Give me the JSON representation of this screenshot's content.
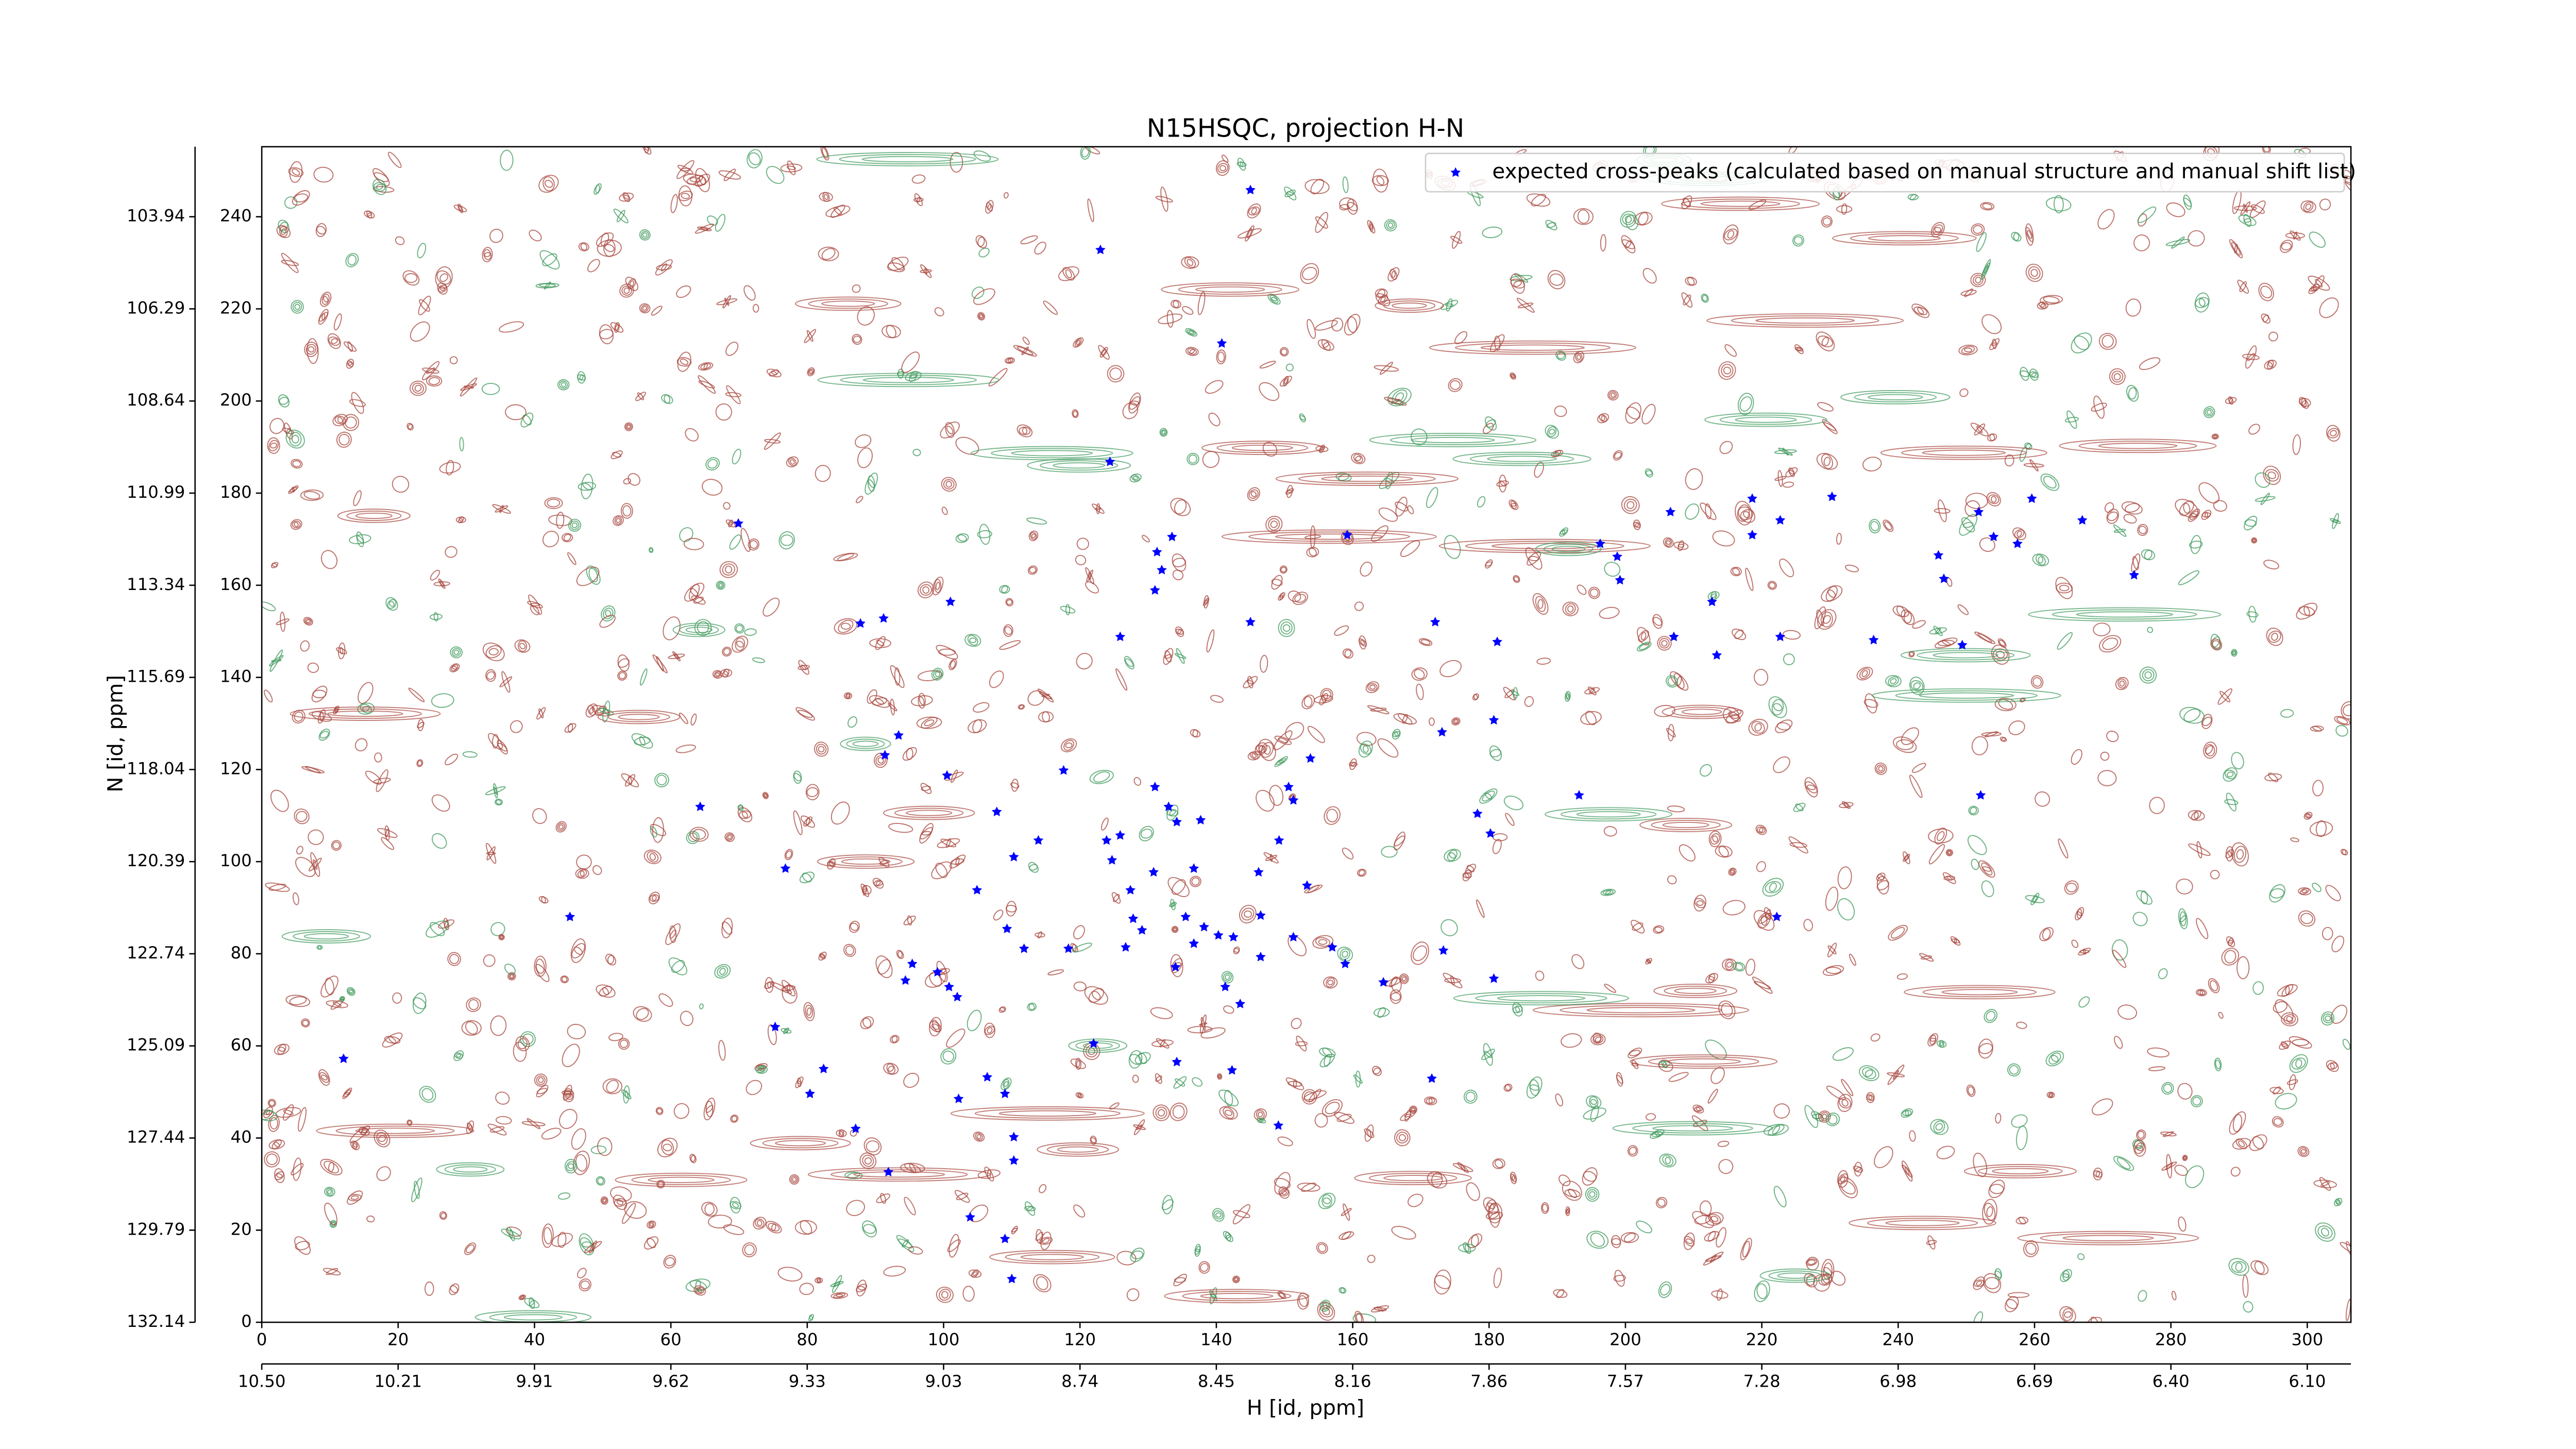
{
  "chart_data": {
    "type": "scatter",
    "title": "N15HSQC, projection H-N",
    "xlabel": "H [id, ppm]",
    "ylabel": "N [id, ppm]",
    "legend": "upper right",
    "xlim": [
      0,
      306.4
    ],
    "ylim": [
      0,
      255.2
    ],
    "xticks": [
      0,
      20,
      40,
      60,
      80,
      100,
      120,
      140,
      160,
      180,
      200,
      220,
      240,
      260,
      280,
      300
    ],
    "yticks": [
      0,
      20,
      40,
      60,
      80,
      100,
      120,
      140,
      160,
      180,
      200,
      220,
      240
    ],
    "x2ticks": [
      {
        "value": 0,
        "label": "10.50"
      },
      {
        "value": 20,
        "label": "10.21"
      },
      {
        "value": 40,
        "label": "9.91"
      },
      {
        "value": 60,
        "label": "9.62"
      },
      {
        "value": 80,
        "label": "9.33"
      },
      {
        "value": 100,
        "label": "9.03"
      },
      {
        "value": 120,
        "label": "8.74"
      },
      {
        "value": 140,
        "label": "8.45"
      },
      {
        "value": 160,
        "label": "8.16"
      },
      {
        "value": 180,
        "label": "7.86"
      },
      {
        "value": 200,
        "label": "7.57"
      },
      {
        "value": 220,
        "label": "7.28"
      },
      {
        "value": 240,
        "label": "6.98"
      },
      {
        "value": 260,
        "label": "6.69"
      },
      {
        "value": 280,
        "label": "6.40"
      },
      {
        "value": 300,
        "label": "6.10"
      }
    ],
    "y2ticks": [
      {
        "value": 0,
        "label": "132.14"
      },
      {
        "value": 20,
        "label": "129.79"
      },
      {
        "value": 40,
        "label": "127.44"
      },
      {
        "value": 60,
        "label": "125.09"
      },
      {
        "value": 80,
        "label": "122.74"
      },
      {
        "value": 100,
        "label": "120.39"
      },
      {
        "value": 120,
        "label": "118.04"
      },
      {
        "value": 140,
        "label": "115.69"
      },
      {
        "value": 160,
        "label": "113.34"
      },
      {
        "value": 180,
        "label": "110.99"
      },
      {
        "value": 200,
        "label": "108.64"
      },
      {
        "value": 220,
        "label": "106.29"
      },
      {
        "value": 240,
        "label": "103.94"
      }
    ],
    "series": [
      {
        "name": "expected cross-peaks (calculated based on manual structure and manual shift list)",
        "color": "#0000ff",
        "x": [
          145.0,
          123.0,
          140.8,
          124.4,
          69.9,
          133.5,
          131.3,
          132.0,
          131.0,
          101.0,
          91.2,
          87.8,
          145.0,
          125.9,
          172.1,
          181.2,
          159.2,
          206.6,
          196.3,
          198.8,
          199.2,
          218.6,
          222.7,
          218.6,
          230.3,
          251.8,
          259.6,
          254.0,
          257.5,
          245.9,
          246.7,
          267.0,
          274.6,
          212.7,
          207.1,
          213.4,
          222.7,
          236.4,
          249.4,
          93.4,
          91.4,
          173.1,
          180.7,
          100.5,
          117.6,
          64.3,
          153.8,
          131.0,
          150.6,
          151.3,
          107.8,
          133.0,
          134.2,
          137.7,
          193.2,
          178.3,
          180.2,
          252.1,
          113.9,
          125.9,
          123.9,
          110.3,
          124.7,
          149.2,
          76.8,
          130.8,
          136.7,
          146.2,
          153.3,
          104.9,
          127.4,
          45.2,
          222.2,
          109.3,
          127.8,
          129.1,
          135.5,
          138.2,
          140.3,
          146.5,
          111.8,
          118.3,
          126.7,
          136.7,
          142.5,
          151.3,
          157.0,
          173.3,
          95.4,
          134.0,
          146.5,
          158.9,
          94.4,
          99.1,
          100.8,
          102.0,
          141.3,
          143.5,
          164.5,
          180.7,
          75.3,
          122.0,
          12.0,
          82.4,
          134.2,
          142.3,
          171.6,
          106.4,
          80.4,
          102.2,
          109.0,
          87.1,
          110.3,
          149.1,
          110.3,
          91.9,
          103.9,
          109.0,
          110.0
        ],
        "values": [
          245.8,
          232.8,
          212.5,
          186.8,
          173.4,
          170.5,
          167.2,
          163.3,
          158.9,
          156.4,
          152.8,
          151.7,
          152.0,
          148.8,
          152.0,
          147.7,
          170.9,
          175.9,
          169.0,
          166.2,
          161.1,
          178.8,
          174.1,
          170.9,
          179.2,
          175.9,
          178.8,
          170.5,
          169.0,
          166.5,
          161.4,
          174.1,
          162.2,
          156.4,
          148.8,
          144.8,
          148.8,
          148.1,
          147.0,
          127.4,
          123.1,
          128.1,
          130.7,
          118.7,
          119.8,
          111.9,
          122.4,
          116.2,
          116.2,
          113.3,
          110.8,
          111.9,
          108.6,
          109.0,
          114.4,
          110.4,
          106.1,
          114.4,
          104.6,
          105.7,
          104.6,
          101.0,
          100.3,
          104.6,
          98.5,
          97.7,
          98.5,
          97.7,
          94.8,
          93.8,
          93.8,
          88.0,
          88.0,
          85.4,
          87.6,
          85.1,
          88.0,
          85.8,
          84.0,
          88.3,
          81.1,
          81.1,
          81.4,
          82.2,
          83.6,
          83.6,
          81.4,
          80.7,
          77.8,
          77.1,
          79.3,
          77.8,
          74.2,
          76.0,
          72.8,
          70.6,
          72.8,
          69.1,
          73.8,
          74.6,
          64.1,
          60.5,
          57.2,
          55.0,
          56.5,
          54.7,
          52.9,
          53.2,
          49.6,
          48.5,
          49.6,
          42.0,
          40.2,
          42.7,
          35.1,
          32.6,
          22.8,
          18.1,
          9.4
        ]
      }
    ]
  }
}
